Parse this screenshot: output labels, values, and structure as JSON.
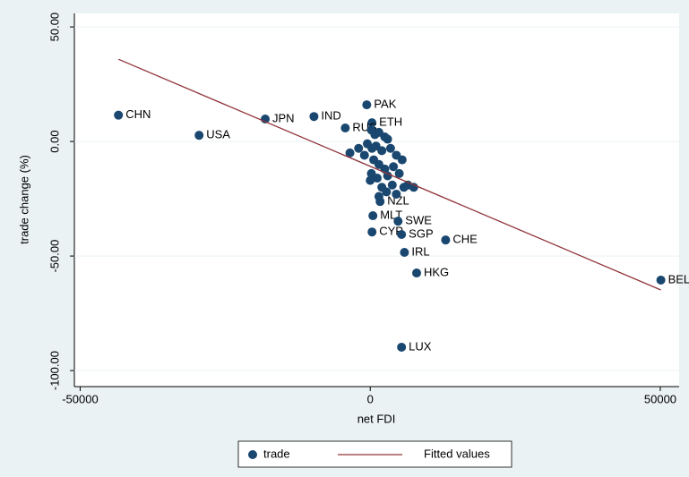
{
  "chart_data": {
    "type": "scatter",
    "x_label": "net FDI",
    "y_label": "trade change (%)",
    "xlim": [
      -51000,
      53250
    ],
    "ylim": [
      -107,
      55.9
    ],
    "xticks": [
      -50000,
      0,
      50000
    ],
    "yticks": [
      {
        "value": -100,
        "label": "-100.00"
      },
      {
        "value": -50,
        "label": "-50.00"
      },
      {
        "value": 0,
        "label": "0.00"
      },
      {
        "value": 50,
        "label": "50.00"
      }
    ],
    "grid": true,
    "legend": "bottom",
    "series": [
      {
        "name": "trade",
        "type": "scatter",
        "color": "#1a476f",
        "x": [
          -43400,
          -29500,
          -18100,
          -9700,
          -600,
          300,
          -4300,
          1700,
          460,
          310,
          4800,
          5400,
          13000,
          5900,
          8000,
          5400,
          50100,
          200,
          800,
          1500,
          2500,
          3000,
          -500,
          300,
          1000,
          2000,
          3500,
          4500,
          5500,
          600,
          1500,
          2500,
          4000,
          200,
          1200,
          3000,
          5000,
          0,
          2000,
          3800,
          5800,
          1500,
          2800,
          4500,
          -2000,
          -3500,
          -1000,
          6500,
          7500
        ],
        "values": [
          11.5,
          2.7,
          9.8,
          10.9,
          16.0,
          8.2,
          5.9,
          -26.2,
          -32.4,
          -39.5,
          -34.8,
          -40.6,
          -43.0,
          -48.4,
          -57.4,
          -89.8,
          -60.5,
          5,
          3,
          4,
          2,
          1,
          -1,
          -3,
          -2,
          -4,
          -3,
          -6,
          -8,
          -8,
          -10,
          -12,
          -11,
          -14,
          -16,
          -15,
          -14,
          -17,
          -20,
          -19,
          -20,
          -24,
          -22,
          -23,
          -3,
          -5,
          -6,
          -19,
          -20
        ],
        "labels": [
          "CHN",
          "USA",
          "JPN",
          "IND",
          "PAK",
          "ETH",
          "RUS",
          "NZL",
          "MLT",
          "CYP",
          "SWE",
          "SGP",
          "CHE",
          "IRL",
          "HKG",
          "LUX",
          "BEL",
          null,
          null,
          null,
          null,
          null,
          null,
          null,
          null,
          null,
          null,
          null,
          null,
          null,
          null,
          null,
          null,
          null,
          null,
          null,
          null,
          null,
          null,
          null,
          null,
          null,
          null,
          null,
          null,
          null,
          null,
          null,
          null
        ]
      },
      {
        "name": "Fitted values",
        "type": "line",
        "color": "#90353b",
        "x": [
          -43400,
          50100
        ],
        "values": [
          35.9,
          -64.8
        ]
      }
    ]
  }
}
